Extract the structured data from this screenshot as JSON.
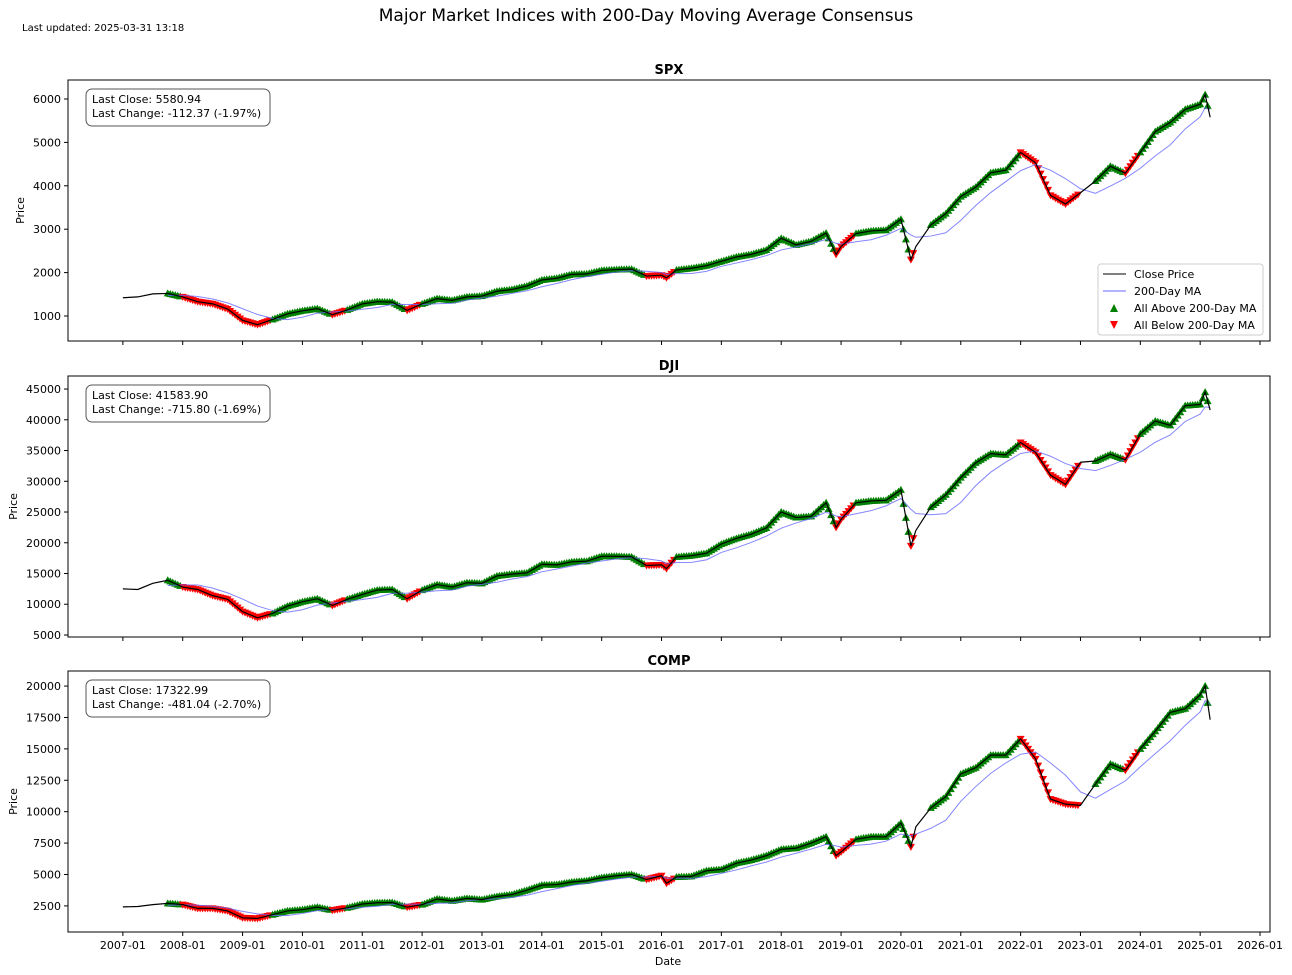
{
  "title": "Major Market Indices with 200-Day Moving Average Consensus",
  "last_updated": "Last updated: 2025-03-31 13:18",
  "colors": {
    "close": "#000000",
    "ma": "#6666ff",
    "above": "#008000",
    "below": "#ff0000"
  },
  "legend": {
    "placement": "lower-right",
    "items": [
      "Close Price",
      "200-Day MA",
      "All Above 200-Day MA",
      "All Below 200-Day MA"
    ]
  },
  "chart_data": {
    "type": "line",
    "xlabel": "Date",
    "xlim": [
      "2006-02",
      "2026-03"
    ],
    "x_ticks": [
      "2007-01",
      "2008-01",
      "2009-01",
      "2010-01",
      "2011-01",
      "2012-01",
      "2013-01",
      "2014-01",
      "2015-01",
      "2016-01",
      "2017-01",
      "2018-01",
      "2019-01",
      "2020-01",
      "2021-01",
      "2022-01",
      "2023-01",
      "2024-01",
      "2025-01",
      "2026-01"
    ],
    "dates": [
      "2007-01",
      "2007-04",
      "2007-07",
      "2007-10",
      "2008-01",
      "2008-04",
      "2008-07",
      "2008-10",
      "2009-01",
      "2009-04",
      "2009-07",
      "2009-10",
      "2010-01",
      "2010-04",
      "2010-07",
      "2010-10",
      "2011-01",
      "2011-04",
      "2011-07",
      "2011-10",
      "2012-01",
      "2012-04",
      "2012-07",
      "2012-10",
      "2013-01",
      "2013-04",
      "2013-07",
      "2013-10",
      "2014-01",
      "2014-04",
      "2014-07",
      "2014-10",
      "2015-01",
      "2015-04",
      "2015-07",
      "2015-10",
      "2016-01",
      "2016-02",
      "2016-04",
      "2016-07",
      "2016-10",
      "2017-01",
      "2017-04",
      "2017-07",
      "2017-10",
      "2018-01",
      "2018-04",
      "2018-07",
      "2018-10",
      "2018-12",
      "2019-01",
      "2019-04",
      "2019-07",
      "2019-10",
      "2020-01",
      "2020-03",
      "2020-04",
      "2020-07",
      "2020-10",
      "2021-01",
      "2021-04",
      "2021-07",
      "2021-10",
      "2022-01",
      "2022-04",
      "2022-07",
      "2022-10",
      "2023-01",
      "2023-04",
      "2023-07",
      "2023-10",
      "2024-01",
      "2024-04",
      "2024-07",
      "2024-10",
      "2025-01",
      "2025-02",
      "2025-03"
    ],
    "consensus_signal": [
      "-",
      "-",
      "-",
      "A",
      "B",
      "B",
      "B",
      "B",
      "B",
      "B",
      "A",
      "A",
      "A",
      "A",
      "B",
      "A",
      "A",
      "A",
      "A",
      "B",
      "A",
      "A",
      "A",
      "A",
      "A",
      "A",
      "A",
      "A",
      "A",
      "A",
      "A",
      "A",
      "A",
      "A",
      "A",
      "B",
      "B",
      "B",
      "A",
      "A",
      "A",
      "A",
      "A",
      "A",
      "A",
      "A",
      "A",
      "A",
      "A",
      "B",
      "B",
      "A",
      "A",
      "A",
      "A",
      "B",
      "-",
      "A",
      "A",
      "A",
      "A",
      "A",
      "A",
      "B",
      "B",
      "B",
      "B",
      "-",
      "A",
      "A",
      "B",
      "A",
      "A",
      "A",
      "A",
      "A",
      "A",
      "B"
    ],
    "panels": [
      {
        "title": "SPX",
        "ylabel": "Price",
        "ylim": [
          424,
          6438
        ],
        "y_ticks": [
          1000,
          2000,
          3000,
          4000,
          5000,
          6000
        ],
        "last_close": "Last Close: 5580.94",
        "last_change": "Last Change: -112.37 (-1.97%)",
        "close": [
          1420,
          1440,
          1510,
          1520,
          1440,
          1330,
          1280,
          1160,
          900,
          800,
          920,
          1050,
          1120,
          1170,
          1030,
          1140,
          1280,
          1330,
          1320,
          1130,
          1280,
          1400,
          1360,
          1440,
          1460,
          1570,
          1610,
          1690,
          1830,
          1870,
          1960,
          1970,
          2050,
          2070,
          2080,
          1920,
          1940,
          1880,
          2060,
          2100,
          2160,
          2260,
          2360,
          2420,
          2520,
          2790,
          2640,
          2720,
          2910,
          2420,
          2600,
          2900,
          2960,
          2980,
          3230,
          2300,
          2600,
          3100,
          3360,
          3750,
          3970,
          4300,
          4360,
          4770,
          4530,
          3780,
          3580,
          3840,
          4110,
          4450,
          4290,
          4770,
          5250,
          5460,
          5760,
          5880,
          6100,
          5581
        ]
      },
      {
        "title": "DJI",
        "ylabel": "Price",
        "ylim": [
          4673,
          47122
        ],
        "y_ticks": [
          5000,
          10000,
          15000,
          20000,
          25000,
          30000,
          35000,
          40000,
          45000
        ],
        "last_close": "Last Close: 41583.90",
        "last_change": "Last Change: -715.80 (-1.69%)",
        "close": [
          12500,
          12400,
          13400,
          13900,
          12800,
          12400,
          11400,
          10800,
          8800,
          7800,
          8500,
          9700,
          10400,
          10900,
          9800,
          10800,
          11600,
          12300,
          12400,
          10900,
          12300,
          13200,
          12800,
          13500,
          13400,
          14600,
          14900,
          15100,
          16500,
          16400,
          16900,
          17000,
          17800,
          17800,
          17700,
          16300,
          16400,
          15800,
          17700,
          17900,
          18300,
          19800,
          20700,
          21400,
          22400,
          25000,
          24100,
          24300,
          26500,
          22500,
          23800,
          26500,
          26800,
          26900,
          28600,
          19500,
          22000,
          25800,
          27800,
          30600,
          33000,
          34500,
          34300,
          36300,
          34700,
          31000,
          29500,
          33100,
          33300,
          34400,
          33500,
          37700,
          39800,
          39100,
          42300,
          42500,
          44500,
          41584
        ]
      },
      {
        "title": "COMP",
        "ylabel": "Price",
        "ylim": [
          422,
          21199
        ],
        "y_ticks": [
          2500,
          5000,
          7500,
          10000,
          12500,
          15000,
          17500,
          20000
        ],
        "last_close": "Last Close: 17322.99",
        "last_change": "Last Change: -481.04 (-2.70%)",
        "close": [
          2420,
          2450,
          2600,
          2700,
          2600,
          2300,
          2300,
          2100,
          1550,
          1500,
          1800,
          2100,
          2200,
          2400,
          2150,
          2350,
          2650,
          2750,
          2770,
          2400,
          2600,
          3050,
          2900,
          3100,
          3000,
          3250,
          3400,
          3750,
          4150,
          4200,
          4400,
          4500,
          4750,
          4900,
          5000,
          4600,
          4900,
          4300,
          4800,
          4850,
          5300,
          5400,
          5900,
          6150,
          6500,
          7000,
          7100,
          7500,
          8000,
          6500,
          6800,
          7800,
          8000,
          8000,
          9100,
          7200,
          8800,
          10300,
          11200,
          13000,
          13500,
          14500,
          14500,
          15800,
          14200,
          11000,
          10600,
          10500,
          12200,
          13800,
          13300,
          15000,
          16400,
          17900,
          18200,
          19300,
          20000,
          17323
        ]
      }
    ]
  }
}
